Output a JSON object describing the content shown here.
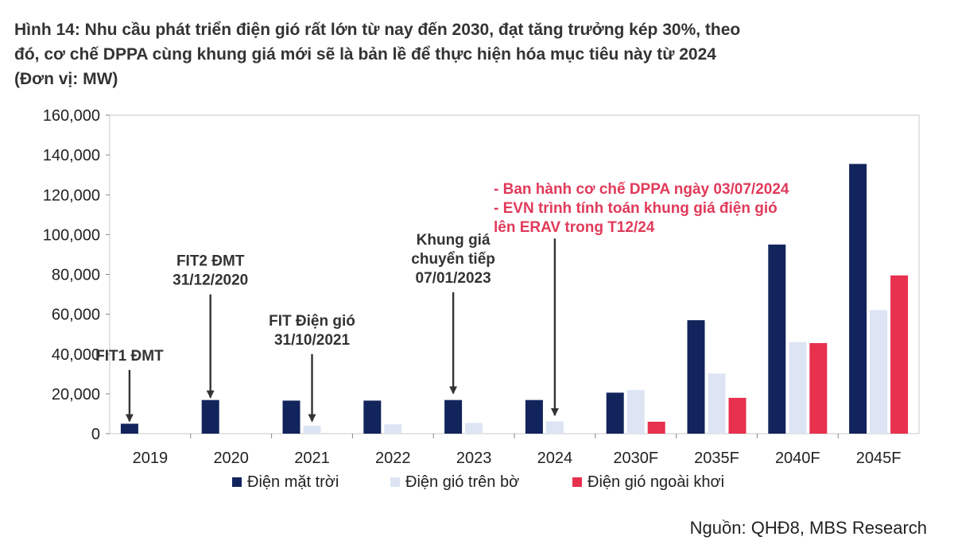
{
  "title_lines": [
    "Hình 14: Nhu cầu phát triển điện gió rất lớn từ nay đến 2030, đạt tăng trưởng kép 30%, theo",
    "đó, cơ chế DPPA cùng khung giá mới sẽ là bản lề để thực hiện hóa mục tiêu này từ 2024",
    "(Đơn vị: MW)"
  ],
  "source": "Nguồn: QHĐ8, MBS Research",
  "colors": {
    "solar": "#12245c",
    "wind_onshore": "#dde5f4",
    "wind_offshore": "#e8304f",
    "annotation_red": "#e03a5a",
    "annotation_dark": "#333333"
  },
  "chart_data": {
    "type": "bar",
    "categories": [
      "2019",
      "2020",
      "2021",
      "2022",
      "2023",
      "2024",
      "2030F",
      "2035F",
      "2040F",
      "2045F"
    ],
    "series": [
      {
        "name": "Điện mặt trời",
        "values": [
          5000,
          16900,
          16600,
          16600,
          16900,
          16900,
          20600,
          57000,
          95000,
          135500
        ]
      },
      {
        "name": "Điện gió trên bờ",
        "values": [
          null,
          null,
          4000,
          4700,
          5400,
          6200,
          21900,
          30200,
          46000,
          62100
        ]
      },
      {
        "name": "Điện gió ngoài khơi",
        "values": [
          null,
          null,
          null,
          null,
          null,
          null,
          6000,
          18000,
          45500,
          79500
        ]
      }
    ],
    "ylim": [
      0,
      160000
    ],
    "yticks": [
      "0",
      "20,000",
      "40,000",
      "60,000",
      "80,000",
      "100,000",
      "120,000",
      "140,000",
      "160,000"
    ],
    "ytick_values": [
      0,
      20000,
      40000,
      60000,
      80000,
      100000,
      120000,
      140000,
      160000
    ],
    "legend_position": "bottom",
    "annotations": [
      {
        "lines": [
          "FIT1 ĐMT"
        ],
        "category": "2019",
        "arrow_from": 32000,
        "arrow_to": 5000,
        "style": "dark"
      },
      {
        "lines": [
          "FIT2 ĐMT",
          "31/12/2020"
        ],
        "category": "2020",
        "arrow_from": 70000,
        "arrow_to": 16900,
        "style": "dark"
      },
      {
        "lines": [
          "FIT Điện gió",
          "31/10/2021"
        ],
        "category": "2021",
        "arrow_from": 40000,
        "arrow_to": 5000,
        "style": "dark"
      },
      {
        "lines": [
          "Khung giá",
          "chuyển tiếp",
          "07/01/2023"
        ],
        "category": "2023",
        "arrow_from": 71000,
        "arrow_to": 19000,
        "style": "dark"
      },
      {
        "lines": [
          "- Ban hành cơ chế DPPA ngày 03/07/2024",
          "- EVN trình tính toán khung giá điện gió",
          "lên ERAV trong T12/24"
        ],
        "category": "2024",
        "arrow_from": 98000,
        "arrow_to": 8000,
        "style": "red"
      }
    ]
  }
}
